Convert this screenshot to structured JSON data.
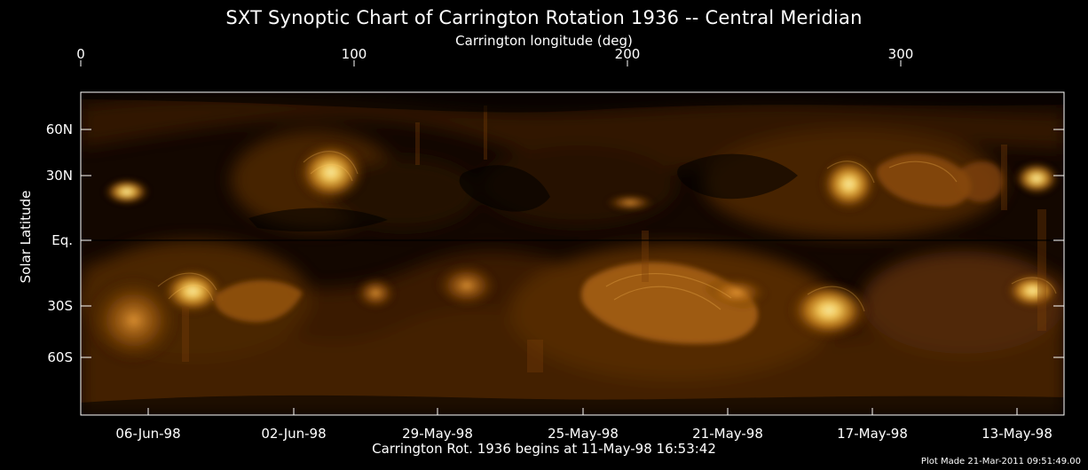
{
  "title": "SXT Synoptic Chart of Carrington Rotation 1936 -- Central Meridian",
  "top_axis": {
    "label": "Carrington longitude (deg)",
    "ticks": [
      {
        "label": "0"
      },
      {
        "label": "100"
      },
      {
        "label": "200"
      },
      {
        "label": "300"
      }
    ]
  },
  "left_axis": {
    "label": "Solar Latitude",
    "ticks": [
      {
        "label": "60N"
      },
      {
        "label": "30N"
      },
      {
        "label": "Eq."
      },
      {
        "label": "30S"
      },
      {
        "label": "60S"
      }
    ]
  },
  "bottom_axis": {
    "label": "Carrington Rot. 1936 begins at 11-May-98 16:53:42",
    "ticks": [
      {
        "label": "06-Jun-98"
      },
      {
        "label": "02-Jun-98"
      },
      {
        "label": "29-May-98"
      },
      {
        "label": "25-May-98"
      },
      {
        "label": "21-May-98"
      },
      {
        "label": "17-May-98"
      },
      {
        "label": "13-May-98"
      }
    ]
  },
  "footer": {
    "plot_made": "Plot Made 21-Mar-2011 09:51:49.00"
  },
  "colors": {
    "background": "#000000",
    "axes": "#ffffff",
    "solar_dark": "#120700",
    "solar_mid": "#5b3104",
    "solar_bright": "#d28a1b",
    "solar_hot": "#ffe08a"
  }
}
